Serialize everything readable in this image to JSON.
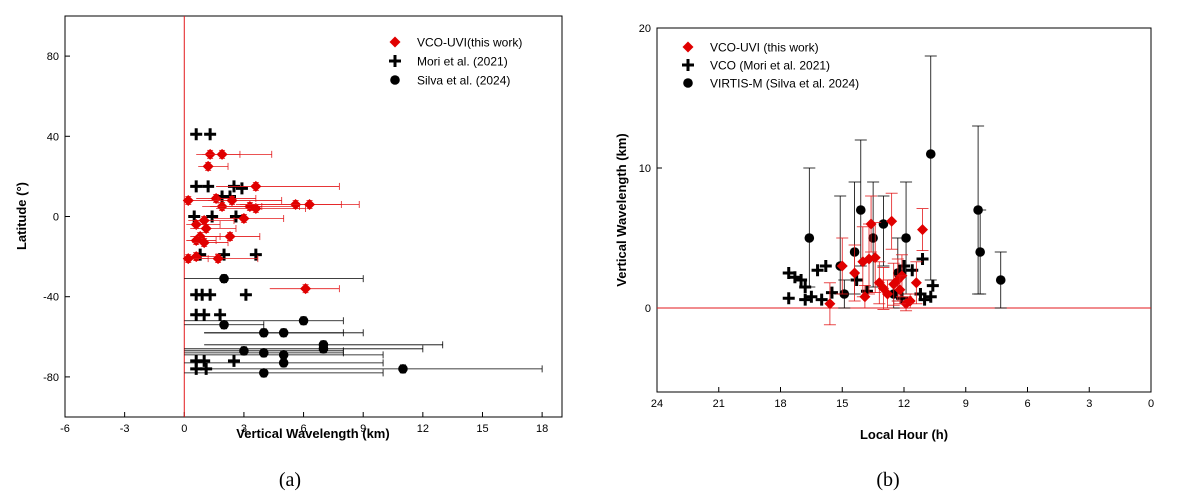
{
  "chart_data": [
    {
      "type": "scatter",
      "panel_label": "(a)",
      "xlabel": "Vertical Wavelength (km)",
      "ylabel": "Latitude (°)",
      "xlim": [
        -6,
        19
      ],
      "ylim": [
        -100,
        100
      ],
      "xticks": [
        -6,
        -3,
        0,
        3,
        6,
        9,
        12,
        15,
        18
      ],
      "yticks": [
        -80,
        -40,
        0,
        40,
        80
      ],
      "reference_line": {
        "axis": "x",
        "value": 0,
        "color": "#e31a1c"
      },
      "legend_position": "top-right",
      "series": [
        {
          "name": "VCO-UVI(this work)",
          "marker": "diamond",
          "color": "#e00000",
          "error_color": "#e31a1c",
          "points": [
            [
              1.3,
              31,
              0.7,
              1.5
            ],
            [
              1.9,
              31,
              1.0,
              2.5
            ],
            [
              1.2,
              25,
              0.5,
              1.0
            ],
            [
              3.6,
              15,
              2.0,
              4.2
            ],
            [
              1.6,
              9,
              1.0,
              2.0
            ],
            [
              0.2,
              8,
              0.2,
              1.5
            ],
            [
              2.4,
              8,
              1.2,
              2.5
            ],
            [
              1.9,
              5,
              1.0,
              2.0
            ],
            [
              3.3,
              5,
              2.0,
              2.5
            ],
            [
              3.6,
              4,
              2.0,
              2.5
            ],
            [
              5.6,
              6,
              3.0,
              2.3
            ],
            [
              6.3,
              6,
              3.5,
              2.5
            ],
            [
              3.0,
              -1,
              1.5,
              2.0
            ],
            [
              1.0,
              -2,
              0.8,
              1.5
            ],
            [
              0.6,
              -4,
              0.5,
              1.2
            ],
            [
              1.1,
              -6,
              0.8,
              1.5
            ],
            [
              2.3,
              -10,
              1.5,
              1.5
            ],
            [
              0.8,
              -10,
              0.5,
              1.0
            ],
            [
              0.6,
              -12,
              0.5,
              1.0
            ],
            [
              1.0,
              -13,
              0.6,
              1.2
            ],
            [
              0.6,
              -20,
              0.4,
              1.0
            ],
            [
              0.2,
              -21,
              0.2,
              1.0
            ],
            [
              1.7,
              -21,
              1.0,
              2.0
            ],
            [
              6.1,
              -36,
              1.8,
              1.7
            ]
          ]
        },
        {
          "name": "Mori et al. (2021)",
          "marker": "cross",
          "color": "#000000",
          "error_color": "#000000",
          "points": [
            [
              0.6,
              41
            ],
            [
              1.3,
              41
            ],
            [
              0.6,
              15
            ],
            [
              1.2,
              15
            ],
            [
              2.5,
              15
            ],
            [
              2.9,
              14
            ],
            [
              1.9,
              10
            ],
            [
              2.3,
              10
            ],
            [
              0.5,
              0
            ],
            [
              1.4,
              0
            ],
            [
              2.6,
              0
            ],
            [
              0.8,
              -19
            ],
            [
              2.0,
              -19
            ],
            [
              3.6,
              -19
            ],
            [
              0.6,
              -39
            ],
            [
              0.9,
              -39
            ],
            [
              1.3,
              -39
            ],
            [
              3.1,
              -39
            ],
            [
              0.6,
              -49
            ],
            [
              1.0,
              -49
            ],
            [
              1.8,
              -49
            ],
            [
              0.6,
              -72
            ],
            [
              1.0,
              -72
            ],
            [
              2.5,
              -72
            ],
            [
              0.6,
              -76
            ],
            [
              1.1,
              -76
            ]
          ]
        },
        {
          "name": "Silva et al. (2024)",
          "marker": "circle",
          "color": "#000000",
          "error_color": "#000000",
          "points": [
            [
              2.0,
              -31,
              2.0,
              7.0
            ],
            [
              6.0,
              -52,
              6.0,
              2.0
            ],
            [
              2.0,
              -54,
              2.0,
              2.0
            ],
            [
              4.0,
              -58,
              3.0,
              4.0
            ],
            [
              5.0,
              -58,
              4.0,
              4.0
            ],
            [
              7.0,
              -64,
              6.0,
              6.0
            ],
            [
              7.0,
              -66,
              7.0,
              5.0
            ],
            [
              3.0,
              -67,
              3.0,
              5.0
            ],
            [
              4.0,
              -68,
              4.0,
              4.0
            ],
            [
              5.0,
              -69,
              5.0,
              5.0
            ],
            [
              5.0,
              -73,
              5.0,
              5.0
            ],
            [
              11.0,
              -76,
              10.0,
              7.0
            ],
            [
              4.0,
              -78,
              4.0,
              6.0
            ]
          ]
        }
      ]
    },
    {
      "type": "scatter",
      "panel_label": "(b)",
      "xlabel": "Local Hour (h)",
      "ylabel": "Vertical Wavelength (km)",
      "xlim": [
        24,
        0
      ],
      "ylim": [
        -6,
        20
      ],
      "xticks": [
        24,
        21,
        18,
        15,
        12,
        9,
        6,
        3,
        0
      ],
      "yticks": [
        0,
        10,
        20
      ],
      "reference_line": {
        "axis": "y",
        "value": 0,
        "color": "#e31a1c"
      },
      "legend_position": "top-left",
      "series": [
        {
          "name": "VCO-UVI (this work)",
          "marker": "diamond",
          "color": "#e00000",
          "error_color": "#e31a1c",
          "points": [
            [
              15.6,
              0.3,
              1.5
            ],
            [
              15.0,
              3.0,
              2.0
            ],
            [
              14.4,
              2.5,
              2.0
            ],
            [
              14.0,
              3.3,
              2.5
            ],
            [
              13.7,
              3.5,
              2.5
            ],
            [
              13.4,
              3.6,
              2.5
            ],
            [
              13.2,
              1.8,
              1.5
            ],
            [
              13.0,
              1.4,
              1.5
            ],
            [
              12.8,
              1.0,
              1.0
            ],
            [
              12.5,
              1.7,
              1.5
            ],
            [
              12.3,
              2.0,
              1.5
            ],
            [
              12.1,
              2.3,
              1.5
            ],
            [
              11.9,
              0.3,
              0.5
            ],
            [
              11.7,
              0.5,
              0.5
            ],
            [
              11.4,
              1.8,
              1.5
            ],
            [
              11.1,
              5.6,
              1.5
            ],
            [
              13.6,
              6.0,
              2.0
            ],
            [
              12.6,
              6.2,
              2.0
            ],
            [
              13.9,
              0.8,
              0.8
            ],
            [
              12.2,
              1.3,
              1.0
            ]
          ]
        },
        {
          "name": "VCO (Mori et al. 2021)",
          "marker": "cross",
          "color": "#000000",
          "error_color": "#000000",
          "points": [
            [
              17.6,
              2.5
            ],
            [
              17.3,
              2.2
            ],
            [
              17.0,
              2.0
            ],
            [
              16.8,
              1.5
            ],
            [
              16.5,
              0.8
            ],
            [
              16.2,
              2.7
            ],
            [
              15.8,
              3.0
            ],
            [
              15.5,
              1.1
            ],
            [
              17.6,
              0.7
            ],
            [
              16.8,
              0.6
            ],
            [
              16.0,
              0.6
            ],
            [
              14.3,
              2.0
            ],
            [
              13.8,
              1.2
            ],
            [
              12.2,
              2.5
            ],
            [
              12.0,
              3.0
            ],
            [
              11.6,
              2.7
            ],
            [
              11.1,
              3.5
            ],
            [
              11.2,
              1.0
            ],
            [
              10.6,
              1.6
            ],
            [
              10.7,
              0.8
            ],
            [
              12.1,
              0.7
            ],
            [
              11.0,
              0.6
            ]
          ]
        },
        {
          "name": "VIRTIS-M (Silva et al. 2024)",
          "marker": "circle",
          "color": "#000000",
          "error_color": "#000000",
          "points": [
            [
              16.6,
              5.0,
              3.5,
              5.0
            ],
            [
              15.1,
              3.0,
              2.0,
              5.0
            ],
            [
              14.4,
              4.0,
              3.0,
              5.0
            ],
            [
              14.1,
              7.0,
              4.0,
              5.0
            ],
            [
              13.5,
              5.0,
              3.5,
              4.0
            ],
            [
              13.0,
              6.0,
              3.0,
              2.0
            ],
            [
              12.3,
              2.5,
              2.0,
              2.5
            ],
            [
              11.9,
              5.0,
              4.0,
              4.0
            ],
            [
              10.7,
              11.0,
              9.0,
              7.0
            ],
            [
              8.4,
              7.0,
              6.0,
              6.0
            ],
            [
              8.3,
              4.0,
              3.0,
              3.0
            ],
            [
              7.3,
              2.0,
              2.0,
              2.0
            ],
            [
              14.9,
              1.0,
              1.0,
              1.0
            ],
            [
              12.5,
              1.0,
              1.0,
              1.0
            ]
          ]
        }
      ]
    }
  ],
  "captions": [
    "(a)",
    "(b)"
  ]
}
